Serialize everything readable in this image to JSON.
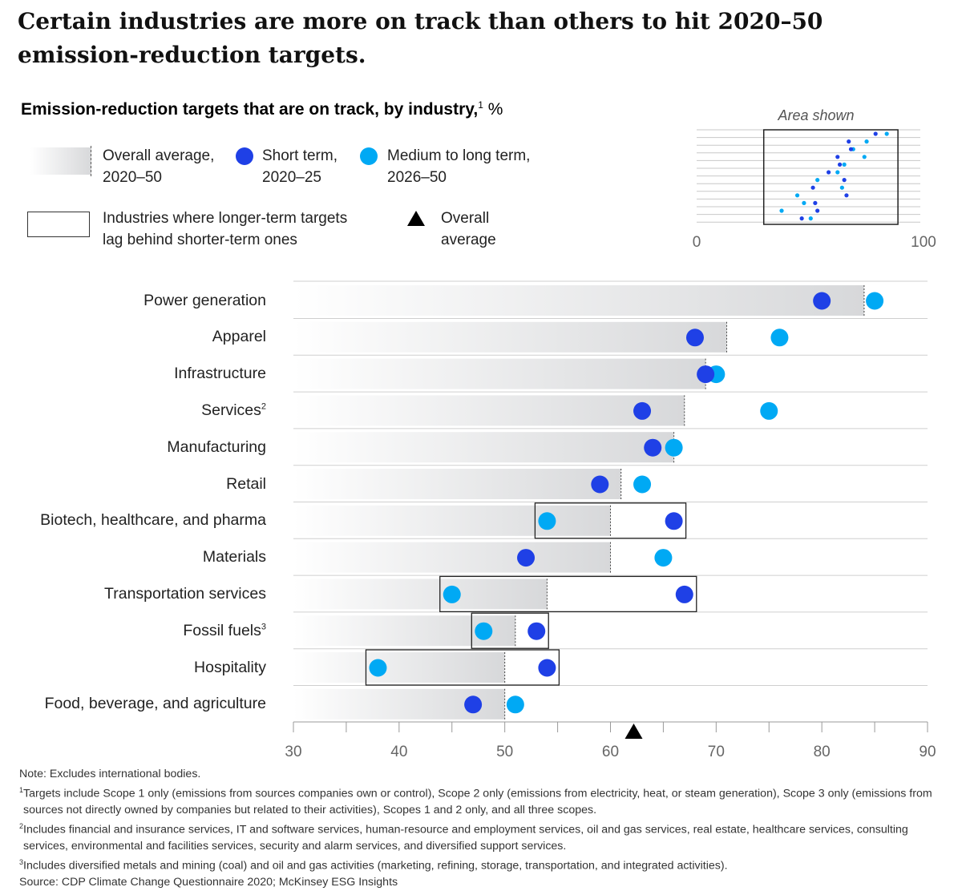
{
  "headline": "Certain industries are more on track than others to hit 2020–50 emission-reduction targets.",
  "subtitle": {
    "text": "Emission-reduction targets that are on track, by industry,",
    "footnote_mark": "1",
    "unit": " %"
  },
  "legend": {
    "overall_avg_line1": "Overall average,",
    "overall_avg_line2": "2020–50",
    "short_line1": "Short term,",
    "short_line2": "2020–25",
    "medium_line1": "Medium to long term,",
    "medium_line2": "2026–50",
    "lag_line1": "Industries where longer-term targets",
    "lag_line2": "lag behind shorter-term ones",
    "tri_line1": "Overall",
    "tri_line2": "average"
  },
  "inset": {
    "title": "Area shown",
    "min_label": "0",
    "max_label": "100",
    "range": [
      0,
      100
    ],
    "shown_area": [
      30,
      90
    ]
  },
  "colors": {
    "short_term": "#1f40e6",
    "medium_long_term": "#00a9f4",
    "bar": "#d7d8da",
    "text": "#222222"
  },
  "chart_data": {
    "type": "dot-bar",
    "xlim": [
      30,
      90
    ],
    "xticks": [
      30,
      40,
      50,
      60,
      70,
      80,
      90
    ],
    "overall_average_marker": 62.2,
    "series": [
      {
        "name": "Overall average, 2020–50",
        "key": "overall"
      },
      {
        "name": "Short term, 2020–25",
        "key": "short"
      },
      {
        "name": "Medium to long term, 2026–50",
        "key": "medium"
      }
    ],
    "categories": [
      {
        "label": "Power generation",
        "sup": "",
        "overall": 84,
        "short": 80,
        "medium": 85,
        "lag": false
      },
      {
        "label": "Apparel",
        "sup": "",
        "overall": 71,
        "short": 68,
        "medium": 76,
        "lag": false
      },
      {
        "label": "Infrastructure",
        "sup": "",
        "overall": 69,
        "short": 69,
        "medium": 70,
        "lag": false
      },
      {
        "label": "Services",
        "sup": "2",
        "overall": 67,
        "short": 63,
        "medium": 75,
        "lag": false
      },
      {
        "label": "Manufacturing",
        "sup": "",
        "overall": 66,
        "short": 64,
        "medium": 66,
        "lag": false
      },
      {
        "label": "Retail",
        "sup": "",
        "overall": 61,
        "short": 59,
        "medium": 63,
        "lag": false
      },
      {
        "label": "Biotech, healthcare, and pharma",
        "sup": "",
        "overall": 60,
        "short": 66,
        "medium": 54,
        "lag": true
      },
      {
        "label": "Materials",
        "sup": "",
        "overall": 60,
        "short": 52,
        "medium": 65,
        "lag": false
      },
      {
        "label": "Transportation services",
        "sup": "",
        "overall": 54,
        "short": 67,
        "medium": 45,
        "lag": true
      },
      {
        "label": "Fossil fuels",
        "sup": "3",
        "overall": 51,
        "short": 53,
        "medium": 48,
        "lag": true
      },
      {
        "label": "Hospitality",
        "sup": "",
        "overall": 50,
        "short": 54,
        "medium": 38,
        "lag": true
      },
      {
        "label": "Food, beverage, and agriculture",
        "sup": "",
        "overall": 50,
        "short": 47,
        "medium": 51,
        "lag": false
      }
    ]
  },
  "notes": {
    "note": "Note: Excludes international bodies.",
    "fn1_mark": "1",
    "fn1": "Targets include Scope 1 only (emissions from sources companies own or control), Scope 2 only (emissions from electricity, heat, or steam generation), Scope 3 only (emissions from sources not directly owned by companies but related to their activities), Scopes 1 and 2 only, and all three scopes.",
    "fn2_mark": "2",
    "fn2": "Includes financial and insurance services, IT and software services, human-resource and employment services, oil and gas services, real estate, healthcare services, consulting services, environmental and facilities services, security and alarm services, and diversified support services.",
    "fn3_mark": "3",
    "fn3": "Includes diversified metals and mining (coal) and oil and gas activities (marketing, refining, storage, transportation, and integrated activities).",
    "source": "Source: CDP Climate Change Questionnaire 2020; McKinsey ESG Insights"
  }
}
